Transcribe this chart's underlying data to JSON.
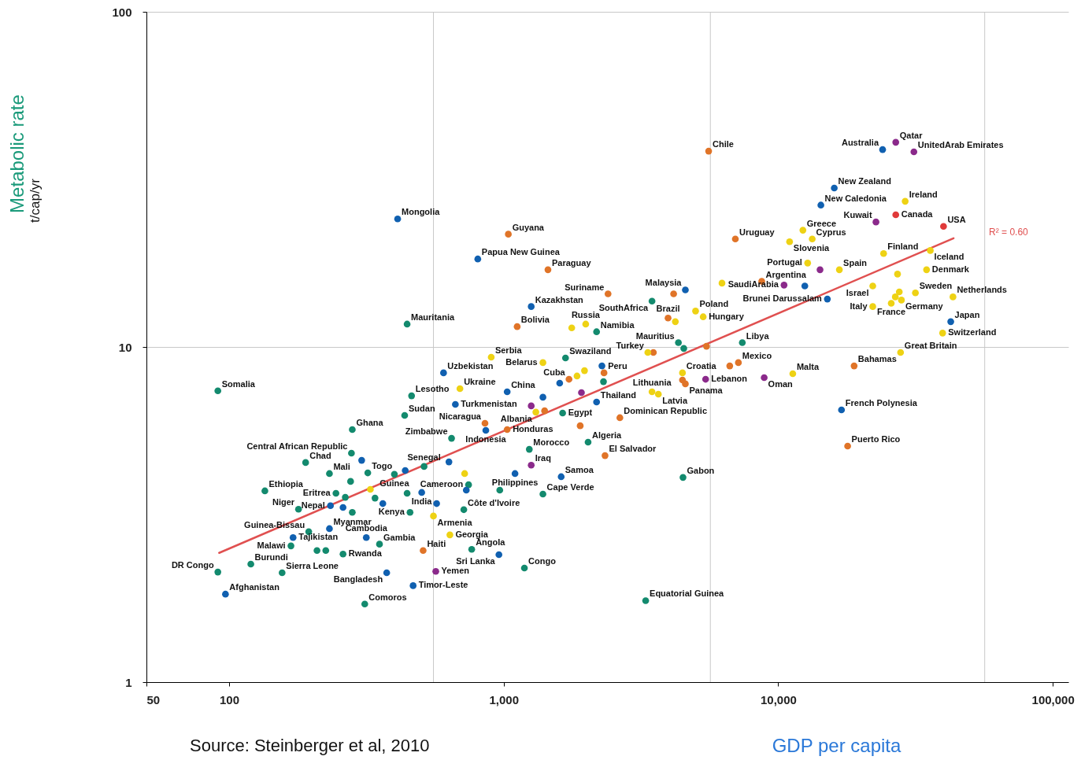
{
  "chart_data": {
    "type": "scatter",
    "xlabel": "GDP per capita",
    "ylabel": "Metabolic rate",
    "log": "xy",
    "grid": true,
    "marker": "circle",
    "xlim": [
      50,
      114000
    ],
    "ylim": [
      1,
      100
    ],
    "xticks": [
      50,
      100,
      {
        "value": 555,
        "label": null
      },
      {
        "value": 1000,
        "label": "1,000"
      },
      {
        "value": 5660,
        "label": null
      },
      {
        "value": 10000,
        "label": "10,000"
      },
      {
        "value": 56500,
        "label": null
      },
      {
        "value": 100000,
        "label": "100,000"
      }
    ],
    "yticks": [
      1,
      10,
      100
    ],
    "series": [
      {
        "color": "#138a6e",
        "x": [
          91,
          91,
          120,
          156,
          135,
          245,
          179,
          195,
          168,
          209,
          225,
          260,
          353,
          312,
          190,
          279,
          232,
          320,
          277,
          281,
          513,
          462,
          436,
          646,
          745,
          265,
          445,
          340,
          456,
          716,
          281,
          968,
          765,
          1190,
          1390,
          1240,
          2030,
          1640,
          1680,
          2310,
          2180,
          3470,
          4330,
          4530,
          7400,
          4500,
          3290,
          445,
          400
        ],
        "values": [
          7.4,
          2.13,
          2.25,
          2.12,
          3.72,
          3.66,
          3.28,
          2.81,
          2.55,
          2.47,
          2.47,
          2.41,
          2.58,
          1.71,
          4.52,
          4.82,
          4.19,
          4.21,
          3.97,
          5.67,
          4.4,
          7.15,
          6.25,
          5.34,
          3.88,
          3.56,
          3.66,
          3.54,
          3.21,
          3.27,
          3.21,
          3.74,
          2.49,
          2.19,
          3.64,
          4.95,
          5.2,
          6.35,
          9.27,
          7.88,
          11.1,
          13.7,
          10.3,
          9.9,
          10.3,
          4.08,
          1.75,
          11.7,
          4.17
        ]
      },
      {
        "color": "#1060b0",
        "x": [
          97,
          171,
          232,
          234,
          260,
          316,
          375,
          468,
          304,
          438,
          632,
          503,
          363,
          570,
          731,
          604,
          667,
          1030,
          1390,
          861,
          1100,
          1620,
          961,
          1600,
          2280,
          2180,
          411,
          805,
          1260,
          4590,
          15100,
          12500,
          14300,
          16000,
          24000,
          42500,
          17000
        ],
        "values": [
          1.83,
          2.7,
          2.87,
          3.36,
          3.32,
          2.7,
          2.12,
          1.94,
          4.59,
          4.28,
          4.54,
          3.68,
          3.41,
          3.41,
          3.74,
          8.37,
          6.74,
          7.35,
          7.08,
          5.64,
          4.19,
          4.1,
          2.4,
          7.8,
          8.78,
          6.85,
          24.1,
          18.3,
          13.2,
          14.8,
          13.9,
          15.2,
          26.5,
          29.8,
          38.8,
          11.9,
          6.49
        ]
      },
      {
        "color": "#e07428",
        "x": [
          509,
          855,
          1030,
          1410,
          1730,
          2320,
          2650,
          1900,
          2340,
          3510,
          5480,
          7160,
          6660,
          4590,
          4480,
          17900,
          18900,
          1040,
          1450,
          1120,
          2400,
          4160,
          3970,
          8710,
          6980,
          5580
        ],
        "values": [
          2.47,
          5.92,
          5.67,
          6.45,
          8.01,
          8.37,
          6.15,
          5.82,
          4.74,
          9.63,
          10.05,
          8.98,
          8.78,
          7.76,
          7.97,
          5.06,
          8.78,
          21.7,
          17.0,
          11.5,
          14.4,
          14.4,
          12.2,
          15.7,
          21.0,
          38.4
        ]
      },
      {
        "color": "#eed214",
        "x": [
          693,
          721,
          327,
          555,
          637,
          901,
          1390,
          1310,
          1850,
          1970,
          3470,
          3660,
          4480,
          3350,
          1770,
          1990,
          4220,
          5000,
          5330,
          6240,
          11300,
          27900,
          39700,
          12300,
          13300,
          11000,
          12800,
          16700,
          22100,
          27200,
          24200,
          35800,
          34700,
          29000,
          31600,
          43300,
          28100,
          27600,
          26700,
          25800,
          22100
        ],
        "values": [
          7.51,
          4.19,
          3.76,
          3.13,
          2.75,
          9.32,
          8.98,
          6.39,
          8.19,
          8.5,
          7.35,
          7.23,
          8.37,
          9.63,
          11.4,
          11.7,
          11.9,
          12.8,
          12.3,
          15.5,
          8.32,
          9.63,
          11.0,
          22.3,
          21.0,
          20.6,
          17.8,
          17.0,
          15.2,
          16.5,
          19.0,
          19.4,
          17.0,
          27.2,
          14.5,
          14.1,
          13.8,
          14.6,
          14.1,
          13.5,
          13.2
        ]
      },
      {
        "color": "#8b2a8b",
        "x": [
          566,
          1260,
          1260,
          1920,
          5440,
          8890,
          10500,
          14200,
          22700,
          26800,
          31200
        ],
        "values": [
          2.14,
          4.44,
          6.67,
          7.31,
          8.01,
          8.1,
          15.3,
          17.0,
          23.6,
          40.8,
          38.2
        ]
      },
      {
        "color": "#e03a3a",
        "x": [
          26800,
          40000
        ],
        "values": [
          24.8,
          22.9
        ]
      },
      {
        "type": "line",
        "marker": "none",
        "name": "R² = 0.60",
        "color": "#e05050",
        "x": [
          92,
          43500
        ],
        "values": [
          2.43,
          21.1
        ]
      }
    ],
    "annotations": [
      "Source: Steinberger et al, 2010",
      "t/cap/yr",
      {
        "text": "Somalia",
        "x": 91,
        "y": 7.4
      },
      {
        "text": "DR Congo",
        "x": 91,
        "y": 2.13
      },
      {
        "text": "Burundi",
        "x": 120,
        "y": 2.25
      },
      {
        "text": "Sierra Leone",
        "x": 156,
        "y": 2.12
      },
      {
        "text": "Ethiopia",
        "x": 135,
        "y": 3.72
      },
      {
        "text": "Eritrea",
        "x": 245,
        "y": 3.66
      },
      {
        "text": "Niger",
        "x": 179,
        "y": 3.28
      },
      {
        "text": "Guinea-Bissau",
        "x": 195,
        "y": 2.81
      },
      {
        "text": "Malawi",
        "x": 168,
        "y": 2.55
      },
      {
        "text": "Rwanda",
        "x": 260,
        "y": 2.41
      },
      {
        "text": "Gambia",
        "x": 353,
        "y": 2.58
      },
      {
        "text": "Comoros",
        "x": 312,
        "y": 1.71
      },
      {
        "text": "Chad",
        "x": 190,
        "y": 4.52
      },
      {
        "text": "Central African Republic",
        "x": 279,
        "y": 4.82
      },
      {
        "text": "Mali",
        "x": 232,
        "y": 4.19
      },
      {
        "text": "Togo",
        "x": 320,
        "y": 4.21
      },
      {
        "text": "Ghana",
        "x": 281,
        "y": 5.67
      },
      {
        "text": "Senegal",
        "x": 513,
        "y": 4.4
      },
      {
        "text": "Lesotho",
        "x": 462,
        "y": 7.15
      },
      {
        "text": "Sudan",
        "x": 436,
        "y": 6.25
      },
      {
        "text": "Zimbabwe",
        "x": 646,
        "y": 5.34
      },
      {
        "text": "Cameroon",
        "x": 745,
        "y": 3.88
      },
      {
        "text": "Kenya",
        "x": 456,
        "y": 3.21
      },
      {
        "text": "Côte d'Ivoire",
        "x": 716,
        "y": 3.27
      },
      {
        "text": "Angola",
        "x": 765,
        "y": 2.49
      },
      {
        "text": "Congo",
        "x": 1190,
        "y": 2.19
      },
      {
        "text": "Cape Verde",
        "x": 1390,
        "y": 3.64
      },
      {
        "text": "Morocco",
        "x": 1240,
        "y": 4.95
      },
      {
        "text": "Algeria",
        "x": 2030,
        "y": 5.2
      },
      {
        "text": "Egypt",
        "x": 1640,
        "y": 6.35
      },
      {
        "text": "Swaziland",
        "x": 1680,
        "y": 9.27
      },
      {
        "text": "Namibia",
        "x": 2180,
        "y": 11.1
      },
      {
        "text": "SouthAfrica",
        "x": 3470,
        "y": 13.7
      },
      {
        "text": "Mauritius",
        "x": 4330,
        "y": 10.3
      },
      {
        "text": "Libya",
        "x": 7400,
        "y": 10.3
      },
      {
        "text": "Gabon",
        "x": 4500,
        "y": 4.08
      },
      {
        "text": "Equatorial Guinea",
        "x": 3290,
        "y": 1.75
      },
      {
        "text": "Mauritania",
        "x": 445,
        "y": 11.7
      },
      {
        "text": "Guinea",
        "x": 400,
        "y": 4.17
      },
      {
        "text": "Afghanistan",
        "x": 97,
        "y": 1.83
      },
      {
        "text": "Tajikistan",
        "x": 171,
        "y": 2.7
      },
      {
        "text": "Myanmar",
        "x": 232,
        "y": 2.87
      },
      {
        "text": "Nepal",
        "x": 234,
        "y": 3.36
      },
      {
        "text": "Cambodia",
        "x": 316,
        "y": 2.7
      },
      {
        "text": "Bangladesh",
        "x": 375,
        "y": 2.12
      },
      {
        "text": "Timor-Leste",
        "x": 468,
        "y": 1.94
      },
      {
        "text": "India",
        "x": 503,
        "y": 3.68
      },
      {
        "text": "Uzbekistan",
        "x": 604,
        "y": 8.37
      },
      {
        "text": "Turkmenistan",
        "x": 667,
        "y": 6.74
      },
      {
        "text": "China",
        "x": 1030,
        "y": 7.35
      },
      {
        "text": "Indonesia",
        "x": 861,
        "y": 5.64
      },
      {
        "text": "Philippines",
        "x": 1100,
        "y": 4.19
      },
      {
        "text": "Samoa",
        "x": 1620,
        "y": 4.1
      },
      {
        "text": "Sri Lanka",
        "x": 961,
        "y": 2.4
      },
      {
        "text": "Thailand",
        "x": 2180,
        "y": 6.85
      },
      {
        "text": "Mongolia",
        "x": 411,
        "y": 24.1
      },
      {
        "text": "Papua New Guinea",
        "x": 805,
        "y": 18.3
      },
      {
        "text": "Kazakhstan",
        "x": 1260,
        "y": 13.2
      },
      {
        "text": "Malaysia",
        "x": 4590,
        "y": 14.8
      },
      {
        "text": "Brunei Darussalam",
        "x": 15100,
        "y": 13.9
      },
      {
        "text": "New Caledonia",
        "x": 14300,
        "y": 26.5
      },
      {
        "text": "New Zealand",
        "x": 16000,
        "y": 29.8
      },
      {
        "text": "Australia",
        "x": 24000,
        "y": 38.8
      },
      {
        "text": "Japan",
        "x": 42500,
        "y": 11.9
      },
      {
        "text": "French Polynesia",
        "x": 17000,
        "y": 6.49
      },
      {
        "text": "Haiti",
        "x": 509,
        "y": 2.47
      },
      {
        "text": "Nicaragua",
        "x": 855,
        "y": 5.92
      },
      {
        "text": "Honduras",
        "x": 1030,
        "y": 5.67
      },
      {
        "text": "Cuba",
        "x": 1730,
        "y": 8.01
      },
      {
        "text": "Peru",
        "x": 2320,
        "y": 8.37
      },
      {
        "text": "Dominican Republic",
        "x": 2650,
        "y": 6.15
      },
      {
        "text": "El Salvador",
        "x": 2340,
        "y": 4.74
      },
      {
        "text": "Mexico",
        "x": 7160,
        "y": 8.98
      },
      {
        "text": "Panama",
        "x": 4590,
        "y": 7.76
      },
      {
        "text": "Puerto Rico",
        "x": 17900,
        "y": 5.06
      },
      {
        "text": "Bahamas",
        "x": 18900,
        "y": 8.78
      },
      {
        "text": "Guyana",
        "x": 1040,
        "y": 21.7
      },
      {
        "text": "Paraguay",
        "x": 1450,
        "y": 17.0
      },
      {
        "text": "Bolivia",
        "x": 1120,
        "y": 11.5
      },
      {
        "text": "Suriname",
        "x": 2400,
        "y": 14.4
      },
      {
        "text": "Brazil",
        "x": 3970,
        "y": 12.2
      },
      {
        "text": "Argentina",
        "x": 8710,
        "y": 15.7
      },
      {
        "text": "Uruguay",
        "x": 6980,
        "y": 21.0
      },
      {
        "text": "Chile",
        "x": 5580,
        "y": 38.4
      },
      {
        "text": "Ukraine",
        "x": 693,
        "y": 7.51
      },
      {
        "text": "Armenia",
        "x": 555,
        "y": 3.13
      },
      {
        "text": "Georgia",
        "x": 637,
        "y": 2.75
      },
      {
        "text": "Serbia",
        "x": 901,
        "y": 9.32
      },
      {
        "text": "Belarus",
        "x": 1390,
        "y": 8.98
      },
      {
        "text": "Albania",
        "x": 1310,
        "y": 6.39
      },
      {
        "text": "Lithuania",
        "x": 3470,
        "y": 7.35
      },
      {
        "text": "Latvia",
        "x": 3660,
        "y": 7.23
      },
      {
        "text": "Croatia",
        "x": 4480,
        "y": 8.37
      },
      {
        "text": "Turkey",
        "x": 3350,
        "y": 9.63
      },
      {
        "text": "Russia",
        "x": 1990,
        "y": 11.7
      },
      {
        "text": "Poland",
        "x": 5000,
        "y": 12.8
      },
      {
        "text": "Hungary",
        "x": 5330,
        "y": 12.3
      },
      {
        "text": "Malta",
        "x": 11300,
        "y": 8.32
      },
      {
        "text": "Great Britain",
        "x": 27900,
        "y": 9.63
      },
      {
        "text": "Switzerland",
        "x": 39700,
        "y": 11.0
      },
      {
        "text": "Greece",
        "x": 12300,
        "y": 22.3
      },
      {
        "text": "Cyprus",
        "x": 13300,
        "y": 21.0
      },
      {
        "text": "Slovenia",
        "x": 11000,
        "y": 20.6
      },
      {
        "text": "Portugal",
        "x": 12800,
        "y": 17.8
      },
      {
        "text": "Spain",
        "x": 16700,
        "y": 17.0
      },
      {
        "text": "Israel",
        "x": 22100,
        "y": 15.2
      },
      {
        "text": "Finland",
        "x": 24200,
        "y": 19.0
      },
      {
        "text": "Iceland",
        "x": 35800,
        "y": 19.4
      },
      {
        "text": "Denmark",
        "x": 34700,
        "y": 17.0
      },
      {
        "text": "Ireland",
        "x": 29000,
        "y": 27.2
      },
      {
        "text": "Sweden",
        "x": 31600,
        "y": 14.5
      },
      {
        "text": "Netherlands",
        "x": 43300,
        "y": 14.1
      },
      {
        "text": "Germany",
        "x": 28100,
        "y": 13.8
      },
      {
        "text": "France",
        "x": 25800,
        "y": 13.5
      },
      {
        "text": "Italy",
        "x": 22100,
        "y": 13.2
      },
      {
        "text": "Yemen",
        "x": 566,
        "y": 2.14
      },
      {
        "text": "Iraq",
        "x": 1260,
        "y": 4.44
      },
      {
        "text": "Lebanon",
        "x": 5440,
        "y": 8.01
      },
      {
        "text": "Oman",
        "x": 8890,
        "y": 8.1
      },
      {
        "text": "SaudiArabia",
        "x": 10500,
        "y": 15.3
      },
      {
        "text": "Kuwait",
        "x": 22700,
        "y": 23.6
      },
      {
        "text": "Qatar",
        "x": 26800,
        "y": 40.8
      },
      {
        "text": "UnitedArab Emirates",
        "x": 31200,
        "y": 38.2
      },
      {
        "text": "Canada",
        "x": 26800,
        "y": 24.8
      },
      {
        "text": "USA",
        "x": 40000,
        "y": 22.9
      }
    ]
  }
}
